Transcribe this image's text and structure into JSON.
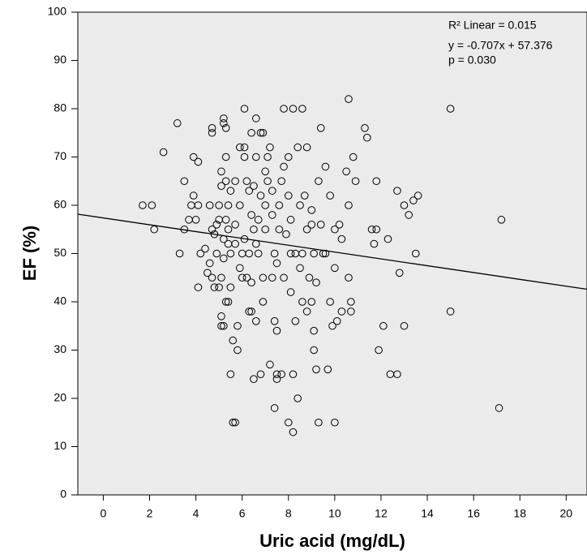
{
  "chart_data": {
    "type": "scatter",
    "xlabel": "Uric acid (mg/dL)",
    "ylabel": "EF (%)",
    "annotations": [
      "R² Linear = 0.015",
      "y = -0.707x + 57.376",
      "p = 0.030"
    ],
    "fit": {
      "slope": -0.707,
      "intercept": 57.376
    },
    "xlim": [
      -1.1,
      20.9
    ],
    "ylim": [
      0,
      100
    ],
    "xticks": [
      0,
      2,
      4,
      6,
      8,
      10,
      12,
      14,
      16,
      18,
      20
    ],
    "yticks": [
      0,
      10,
      20,
      30,
      40,
      50,
      60,
      70,
      80,
      90,
      100
    ],
    "color": "#000000",
    "background": "#ebebeb",
    "x": [
      1.7,
      2.1,
      2.2,
      2.6,
      3.2,
      3.3,
      3.5,
      3.5,
      3.7,
      3.8,
      3.9,
      3.9,
      4,
      4.1,
      4.1,
      4.1,
      4.2,
      4.4,
      4.5,
      4.6,
      4.6,
      4.7,
      4.7,
      4.7,
      4.7,
      4.8,
      4.8,
      4.9,
      4.9,
      5,
      5,
      5,
      5.1,
      5.1,
      5.1,
      5.1,
      5.1,
      5.2,
      5.2,
      5.2,
      5.2,
      5.2,
      5.3,
      5.3,
      5.3,
      5.3,
      5.3,
      5.4,
      5.4,
      5.4,
      5.4,
      5.5,
      5.5,
      5.5,
      5.5,
      5.6,
      5.6,
      5.7,
      5.7,
      5.7,
      5.7,
      5.8,
      5.8,
      5.9,
      5.9,
      5.9,
      6,
      6,
      6.1,
      6.1,
      6.1,
      6.1,
      6.2,
      6.2,
      6.3,
      6.3,
      6.3,
      6.4,
      6.4,
      6.4,
      6.4,
      6.5,
      6.5,
      6.5,
      6.6,
      6.6,
      6.6,
      6.6,
      6.7,
      6.7,
      6.8,
      6.8,
      6.8,
      6.9,
      6.9,
      6.9,
      7,
      7,
      7,
      7.1,
      7.1,
      7.2,
      7.2,
      7.3,
      7.3,
      7.3,
      7.4,
      7.4,
      7.4,
      7.5,
      7.5,
      7.5,
      7.5,
      7.6,
      7.6,
      7.7,
      7.7,
      7.8,
      7.8,
      7.8,
      7.9,
      8,
      8,
      8,
      8.1,
      8.1,
      8.1,
      8.2,
      8.2,
      8.2,
      8.3,
      8.3,
      8.4,
      8.4,
      8.5,
      8.5,
      8.6,
      8.6,
      8.6,
      8.7,
      8.8,
      8.8,
      8.8,
      8.9,
      9,
      9,
      9,
      9.1,
      9.1,
      9.1,
      9.2,
      9.2,
      9.3,
      9.3,
      9.4,
      9.4,
      9.5,
      9.6,
      9.6,
      9.7,
      9.8,
      9.8,
      9.9,
      10,
      10,
      10,
      10.1,
      10.2,
      10.3,
      10.3,
      10.5,
      10.6,
      10.6,
      10.6,
      10.7,
      10.7,
      10.8,
      10.9,
      11.3,
      11.4,
      11.6,
      11.7,
      11.8,
      11.8,
      11.9,
      12.1,
      12.3,
      12.4,
      12.7,
      12.7,
      12.8,
      13,
      13,
      13.2,
      13.4,
      13.5,
      13.6,
      15,
      15,
      17.1,
      17.2
    ],
    "values": [
      60,
      60,
      55,
      71,
      77,
      50,
      55,
      65,
      57,
      60,
      70,
      62,
      57,
      69,
      43,
      60,
      50,
      51,
      46,
      48,
      60,
      75,
      76,
      55,
      45,
      43,
      54,
      56,
      50,
      43,
      57,
      60,
      64,
      67,
      45,
      37,
      35,
      78,
      77,
      53,
      49,
      35,
      76,
      70,
      65,
      57,
      40,
      60,
      55,
      52,
      40,
      63,
      50,
      43,
      25,
      32,
      15,
      15,
      65,
      56,
      52,
      30,
      35,
      72,
      60,
      47,
      50,
      45,
      70,
      80,
      72,
      53,
      65,
      45,
      38,
      50,
      63,
      75,
      58,
      44,
      38,
      64,
      55,
      24,
      78,
      70,
      52,
      36,
      50,
      57,
      75,
      25,
      62,
      75,
      45,
      40,
      60,
      67,
      55,
      65,
      70,
      72,
      27,
      63,
      58,
      45,
      18,
      36,
      50,
      25,
      24,
      34,
      48,
      60,
      55,
      65,
      25,
      80,
      68,
      45,
      54,
      15,
      70,
      62,
      42,
      57,
      50,
      80,
      13,
      25,
      50,
      36,
      72,
      20,
      60,
      47,
      80,
      50,
      40,
      62,
      72,
      38,
      55,
      45,
      40,
      59,
      56,
      30,
      50,
      34,
      44,
      26,
      15,
      65,
      76,
      56,
      50,
      68,
      50,
      26,
      62,
      40,
      35,
      15,
      55,
      47,
      36,
      56,
      38,
      53,
      67,
      45,
      82,
      60,
      40,
      38,
      70,
      65,
      76,
      74,
      55,
      52,
      55,
      65,
      30,
      35,
      53,
      25,
      63,
      25,
      46,
      35,
      60,
      58,
      61,
      50,
      62,
      80,
      38,
      18,
      57
    ]
  }
}
